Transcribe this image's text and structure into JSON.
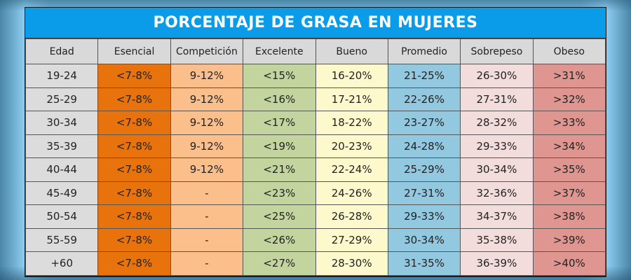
{
  "title": "PORCENTAJE DE GRASA EN MUJERES",
  "colors": {
    "title_bg": "#0a9ce8",
    "Edad": "#dcdcdc",
    "Esencial": "#e8720c",
    "Competición": "#fbbf8c",
    "Excelente": "#c4d49e",
    "Bueno": "#fdf9cc",
    "Promedio": "#92c8e0",
    "Sobrepeso": "#f3dcdc",
    "Obeso": "#df9590"
  },
  "headers": [
    "Edad",
    "Esencial",
    "Competición",
    "Excelente",
    "Bueno",
    "Promedio",
    "Sobrepeso",
    "Obeso"
  ],
  "rows": [
    [
      "19-24",
      "<7-8%",
      "9-12%",
      "<15%",
      "16-20%",
      "21-25%",
      "26-30%",
      ">31%"
    ],
    [
      "25-29",
      "<7-8%",
      "9-12%",
      "<16%",
      "17-21%",
      "22-26%",
      "27-31%",
      ">32%"
    ],
    [
      "30-34",
      "<7-8%",
      "9-12%",
      "<17%",
      "18-22%",
      "23-27%",
      "28-32%",
      ">33%"
    ],
    [
      "35-39",
      "<7-8%",
      "9-12%",
      "<19%",
      "20-23%",
      "24-28%",
      "29-33%",
      ">34%"
    ],
    [
      "40-44",
      "<7-8%",
      "9-12%",
      "<21%",
      "22-24%",
      "25-29%",
      "30-34%",
      ">35%"
    ],
    [
      "45-49",
      "<7-8%",
      "-",
      "<23%",
      "24-26%",
      "27-31%",
      "32-36%",
      ">37%"
    ],
    [
      "50-54",
      "<7-8%",
      "-",
      "<25%",
      "26-28%",
      "29-33%",
      "34-37%",
      ">38%"
    ],
    [
      "55-59",
      "<7-8%",
      "-",
      "<26%",
      "27-29%",
      "30-34%",
      "35-38%",
      ">39%"
    ],
    [
      "+60",
      "<7-8%",
      "-",
      "<27%",
      "28-30%",
      "31-35%",
      "36-39%",
      ">40%"
    ]
  ]
}
